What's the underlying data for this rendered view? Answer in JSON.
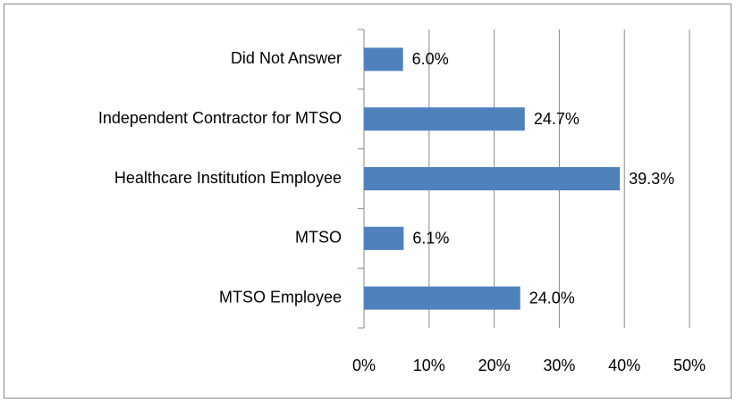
{
  "chart_data": {
    "type": "barh",
    "categories": [
      "Did Not Answer",
      "Independent Contractor for MTSO",
      "Healthcare Institution Employee",
      "MTSO",
      "MTSO Employee"
    ],
    "values": [
      6.0,
      24.7,
      39.3,
      6.1,
      24.0
    ],
    "value_labels": [
      "6.0%",
      "24.7%",
      "39.3%",
      "6.1%",
      "24.0%"
    ],
    "color": "#4f81bd",
    "xlim": [
      0,
      50
    ],
    "xticks": [
      {
        "value": 0,
        "label": "0%"
      },
      {
        "value": 10,
        "label": "10%"
      },
      {
        "value": 20,
        "label": "20%"
      },
      {
        "value": 30,
        "label": "30%"
      },
      {
        "value": 40,
        "label": "40%"
      },
      {
        "value": 50,
        "label": "50%"
      }
    ],
    "grid": true
  }
}
